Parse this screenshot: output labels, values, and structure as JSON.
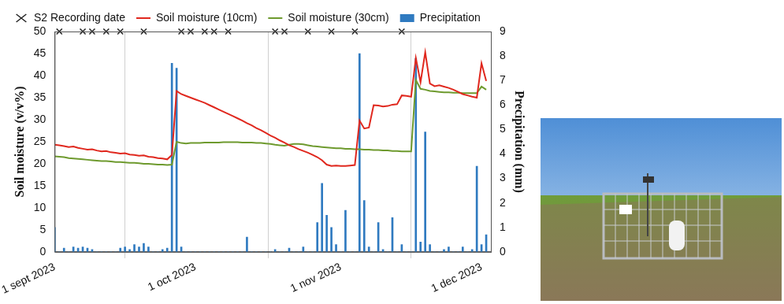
{
  "chart_data": {
    "type": "line",
    "x": [
      "2023-09-01",
      "2023-09-02",
      "2023-09-03",
      "2023-09-04",
      "2023-09-05",
      "2023-09-06",
      "2023-09-07",
      "2023-09-08",
      "2023-09-09",
      "2023-09-10",
      "2023-09-11",
      "2023-09-12",
      "2023-09-13",
      "2023-09-14",
      "2023-09-15",
      "2023-09-16",
      "2023-09-17",
      "2023-09-18",
      "2023-09-19",
      "2023-09-20",
      "2023-09-21",
      "2023-09-22",
      "2023-09-23",
      "2023-09-24",
      "2023-09-25",
      "2023-09-26",
      "2023-09-27",
      "2023-09-28",
      "2023-09-29",
      "2023-09-30",
      "2023-10-01",
      "2023-10-02",
      "2023-10-03",
      "2023-10-04",
      "2023-10-05",
      "2023-10-06",
      "2023-10-07",
      "2023-10-08",
      "2023-10-09",
      "2023-10-10",
      "2023-10-11",
      "2023-10-12",
      "2023-10-13",
      "2023-10-14",
      "2023-10-15",
      "2023-10-16",
      "2023-10-17",
      "2023-10-18",
      "2023-10-19",
      "2023-10-20",
      "2023-10-21",
      "2023-10-22",
      "2023-10-23",
      "2023-10-24",
      "2023-10-25",
      "2023-10-26",
      "2023-10-27",
      "2023-10-28",
      "2023-10-29",
      "2023-10-30",
      "2023-10-31",
      "2023-11-01",
      "2023-11-02",
      "2023-11-03",
      "2023-11-04",
      "2023-11-05",
      "2023-11-06",
      "2023-11-07",
      "2023-11-08",
      "2023-11-09",
      "2023-11-10",
      "2023-11-11",
      "2023-11-12",
      "2023-11-13",
      "2023-11-14",
      "2023-11-15",
      "2023-11-16",
      "2023-11-17",
      "2023-11-18",
      "2023-11-19",
      "2023-11-20",
      "2023-11-21",
      "2023-11-22",
      "2023-11-23",
      "2023-11-24",
      "2023-11-25",
      "2023-11-26",
      "2023-11-27",
      "2023-11-28",
      "2023-11-29",
      "2023-11-30",
      "2023-12-01",
      "2023-12-02"
    ],
    "series": [
      {
        "name": "Precipitation",
        "type": "bar",
        "axis": "y2",
        "color": "#2f7ac0",
        "values": [
          1.0,
          0,
          0.15,
          0,
          0.2,
          0.15,
          0.2,
          0.15,
          0.1,
          0,
          0,
          0,
          0,
          0,
          0.15,
          0.2,
          0.1,
          0.3,
          0.2,
          0.35,
          0.2,
          0,
          0,
          0.1,
          0.15,
          7.7,
          7.5,
          0.2,
          0,
          0,
          0,
          0,
          0,
          0,
          0,
          0,
          0,
          0,
          0,
          0,
          0,
          0.6,
          0,
          0,
          0,
          0,
          0,
          0.1,
          0,
          0,
          0.15,
          0,
          0,
          0.2,
          0,
          0,
          1.2,
          2.8,
          1.5,
          1.0,
          0.3,
          0,
          1.7,
          0,
          0,
          8.1,
          2.1,
          0.2,
          0,
          1.2,
          0.1,
          0,
          1.4,
          0,
          0.3,
          0,
          0,
          7.9,
          0.4,
          4.9,
          0.3,
          0,
          0,
          0.1,
          0.2,
          0,
          0,
          0.2,
          0,
          0.1,
          3.5,
          0.3,
          0.7
        ]
      },
      {
        "name": "Soil moisture (10cm)",
        "type": "line",
        "color": "#e0281e",
        "line_style": "solid",
        "values": [
          24.3,
          24.2,
          24.0,
          23.8,
          23.9,
          23.6,
          23.4,
          23.2,
          23.3,
          23.0,
          22.8,
          22.9,
          22.6,
          22.5,
          22.3,
          22.4,
          22.1,
          22.0,
          21.8,
          21.9,
          21.6,
          21.5,
          21.3,
          21.2,
          21.0,
          22.0,
          36.5,
          35.8,
          35.4,
          35.0,
          34.6,
          34.2,
          33.8,
          33.3,
          32.8,
          32.3,
          31.8,
          31.3,
          30.8,
          30.3,
          29.8,
          29.2,
          28.7,
          28.1,
          27.6,
          27.0,
          26.4,
          25.9,
          25.3,
          24.8,
          24.2,
          23.8,
          23.3,
          22.9,
          22.5,
          22.0,
          21.5,
          20.8,
          19.8,
          19.5,
          19.6,
          19.5,
          19.5,
          19.6,
          19.7,
          29.8,
          28.0,
          28.2,
          33.3,
          33.2,
          33.0,
          33.1,
          33.4,
          33.5,
          35.5,
          35.4,
          35.2,
          44.0,
          38.5,
          45.3,
          38.2,
          37.6,
          37.8,
          37.5,
          37.2,
          36.8,
          36.3,
          35.8,
          35.5,
          35.2,
          35.0,
          42.8,
          38.8
        ]
      },
      {
        "name": "Soil moisture (30cm)",
        "type": "line",
        "color": "#6e9a2e",
        "line_style": "solid",
        "values": [
          21.7,
          21.6,
          21.5,
          21.3,
          21.2,
          21.1,
          21.0,
          20.9,
          20.8,
          20.7,
          20.6,
          20.6,
          20.5,
          20.4,
          20.4,
          20.3,
          20.2,
          20.2,
          20.1,
          20.0,
          20.0,
          19.9,
          19.8,
          19.8,
          19.7,
          19.8,
          25.0,
          24.7,
          24.6,
          24.7,
          24.7,
          24.7,
          24.8,
          24.8,
          24.8,
          24.8,
          24.9,
          24.9,
          24.9,
          24.9,
          24.8,
          24.8,
          24.8,
          24.7,
          24.7,
          24.6,
          24.5,
          24.3,
          24.2,
          24.1,
          24.3,
          24.5,
          24.5,
          24.4,
          24.2,
          24.0,
          23.9,
          23.8,
          23.7,
          23.6,
          23.5,
          23.5,
          23.4,
          23.4,
          23.3,
          23.3,
          23.2,
          23.2,
          23.1,
          23.1,
          23.0,
          23.0,
          22.9,
          22.9,
          22.8,
          22.8,
          22.8,
          39.0,
          37.0,
          36.8,
          36.5,
          36.4,
          36.3,
          36.2,
          36.2,
          36.1,
          36.1,
          36.0,
          36.0,
          36.0,
          36.0,
          37.5,
          36.8
        ]
      },
      {
        "name": "S2 Recording date",
        "type": "scatter",
        "marker": "crossRot",
        "color": "#222222",
        "x": [
          "2023-09-02",
          "2023-09-07",
          "2023-09-09",
          "2023-09-12",
          "2023-09-15",
          "2023-09-20",
          "2023-09-28",
          "2023-09-30",
          "2023-10-03",
          "2023-10-05",
          "2023-10-08",
          "2023-10-18",
          "2023-10-20",
          "2023-10-25",
          "2023-10-30",
          "2023-11-04",
          "2023-11-14"
        ],
        "values": [
          50,
          50,
          50,
          50,
          50,
          50,
          50,
          50,
          50,
          50,
          50,
          50,
          50,
          50,
          50,
          50,
          50
        ]
      }
    ],
    "x_label": null,
    "y_label": "Soil moisture (v/v%)",
    "y2_label": "Precipitation (mm)",
    "xlim": [
      "2023-09-01",
      "2023-12-03"
    ],
    "xticks": [
      {
        "value": "2023-09-01",
        "label": "1 sept 2023"
      },
      {
        "value": "2023-10-01",
        "label": "1 oct 2023"
      },
      {
        "value": "2023-11-01",
        "label": "1 nov 2023"
      },
      {
        "value": "2023-12-01",
        "label": "1 dec 2023"
      }
    ],
    "ylim": [
      0,
      50
    ],
    "yticks": [
      0,
      5,
      10,
      15,
      20,
      25,
      30,
      35,
      40,
      45,
      50
    ],
    "y2lim": [
      0,
      9
    ],
    "y2ticks": [
      0,
      1,
      2,
      3,
      4,
      5,
      6,
      7,
      8,
      9
    ],
    "grid": "x",
    "legend": "top"
  }
}
